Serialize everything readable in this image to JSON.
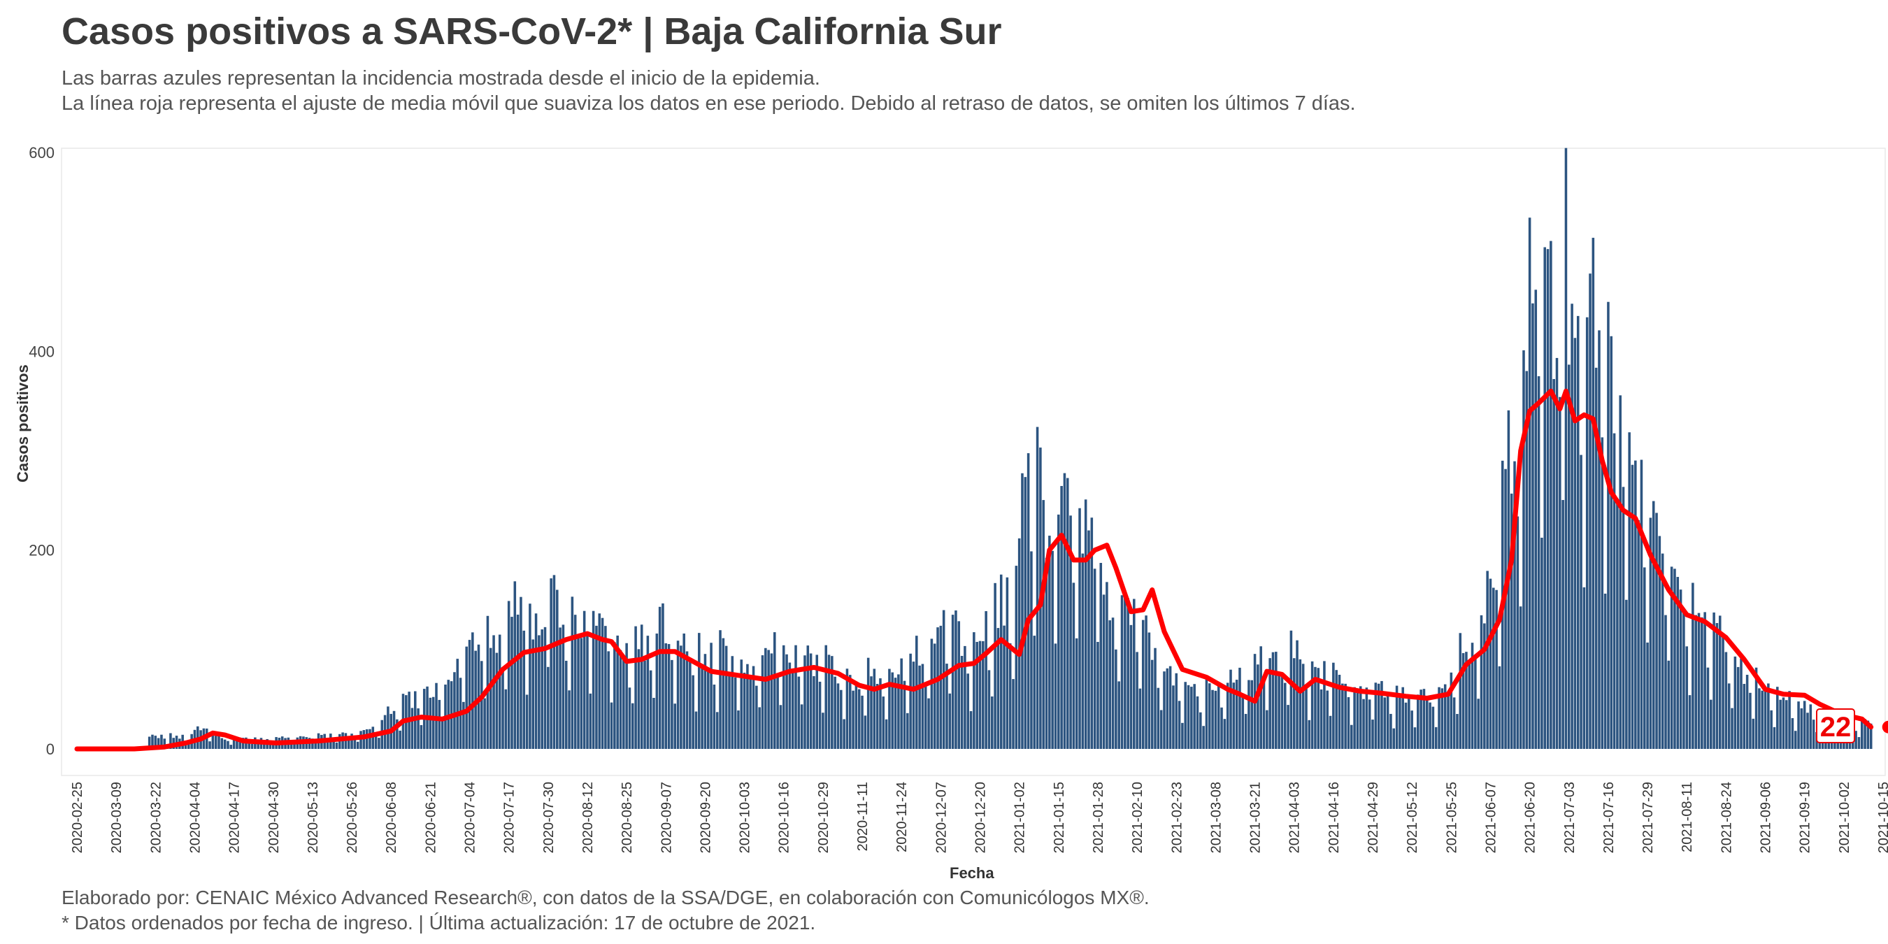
{
  "title": "Casos positivos a SARS-CoV-2* | Baja California Sur",
  "subtitle_line1": "Las barras azules representan la incidencia mostrada desde el inicio de la epidemia.",
  "subtitle_line2": "La línea roja representa el ajuste de media móvil que suaviza los datos en ese periodo. Debido al retraso de datos, se omiten los últimos 7 días.",
  "caption_line1": "Elaborado por: CENAIC México Advanced Research®, con datos de la SSA/DGE, en colaboración con Comunicólogos MX®.",
  "caption_line2": "* Datos ordenados por fecha de ingreso. | Última actualización: 17 de octubre de 2021.",
  "colors": {
    "bars": "#2c5480",
    "line": "#ff0000",
    "last_label": "#ee0000"
  },
  "chart_data": {
    "type": "bar",
    "title": "Casos positivos a SARS-CoV-2* | Baja California Sur",
    "xlabel": "Fecha",
    "ylabel": "Casos positivos",
    "ylim": [
      -30,
      600
    ],
    "x_range": [
      "2020-02-25",
      "2021-10-15"
    ],
    "y_ticks": [
      0,
      200,
      400,
      600
    ],
    "x_ticks": [
      "2020-02-25",
      "2020-03-09",
      "2020-03-22",
      "2020-04-04",
      "2020-04-17",
      "2020-04-30",
      "2020-05-13",
      "2020-05-26",
      "2020-06-08",
      "2020-06-21",
      "2020-07-04",
      "2020-07-17",
      "2020-07-30",
      "2020-08-12",
      "2020-08-25",
      "2020-09-07",
      "2020-09-20",
      "2020-10-03",
      "2020-10-16",
      "2020-10-29",
      "2020-11-11",
      "2020-11-24",
      "2020-12-07",
      "2020-12-20",
      "2021-01-02",
      "2021-01-15",
      "2021-01-28",
      "2021-02-10",
      "2021-02-23",
      "2021-03-08",
      "2021-03-21",
      "2021-04-03",
      "2021-04-16",
      "2021-04-29",
      "2021-05-12",
      "2021-05-25",
      "2021-06-07",
      "2021-06-20",
      "2021-07-03",
      "2021-07-16",
      "2021-07-29",
      "2021-08-11",
      "2021-08-24",
      "2021-09-06",
      "2021-09-19",
      "2021-10-02",
      "2021-10-15"
    ],
    "grid": false,
    "legend": "none",
    "bars_series": {
      "name": "Casos diarios",
      "dates": [
        "2020-04-02",
        "2020-04-04",
        "2020-04-06",
        "2020-04-08",
        "2020-04-10",
        "2020-04-14",
        "2020-04-20",
        "2020-04-28",
        "2020-05-10",
        "2020-05-24",
        "2020-06-03",
        "2020-06-08",
        "2020-06-14",
        "2020-06-18",
        "2020-06-22",
        "2020-06-26",
        "2020-07-01",
        "2020-07-04",
        "2020-07-08",
        "2020-07-12",
        "2020-07-16",
        "2020-07-20",
        "2020-07-24",
        "2020-07-27",
        "2020-07-30",
        "2020-08-03",
        "2020-08-08",
        "2020-08-12",
        "2020-08-16",
        "2020-08-20",
        "2020-08-25",
        "2020-08-30",
        "2020-09-05",
        "2020-09-10",
        "2020-09-15",
        "2020-09-20",
        "2020-09-26",
        "2020-10-03",
        "2020-10-08",
        "2020-10-13",
        "2020-10-18",
        "2020-10-24",
        "2020-10-29",
        "2020-11-04",
        "2020-11-09",
        "2020-11-15",
        "2020-11-20",
        "2020-11-25",
        "2020-12-01",
        "2020-12-06",
        "2020-12-10",
        "2020-12-14",
        "2020-12-18",
        "2020-12-22",
        "2020-12-27",
        "2021-01-01",
        "2021-01-04",
        "2021-01-07",
        "2021-01-11",
        "2021-01-15",
        "2021-01-19",
        "2021-01-23",
        "2021-01-27",
        "2021-01-31",
        "2021-02-04",
        "2021-02-08",
        "2021-02-12",
        "2021-02-17",
        "2021-02-22",
        "2021-02-27",
        "2021-03-04",
        "2021-03-09",
        "2021-03-14",
        "2021-03-19",
        "2021-03-24",
        "2021-03-29",
        "2021-04-03",
        "2021-04-08",
        "2021-04-13",
        "2021-04-18",
        "2021-04-23",
        "2021-04-28",
        "2021-05-03",
        "2021-05-08",
        "2021-05-13",
        "2021-05-18",
        "2021-05-23",
        "2021-05-28",
        "2021-06-02",
        "2021-06-06",
        "2021-06-10",
        "2021-06-13",
        "2021-06-16",
        "2021-06-19",
        "2021-06-21",
        "2021-06-23",
        "2021-06-25",
        "2021-06-27",
        "2021-06-29",
        "2021-07-01",
        "2021-07-03",
        "2021-07-05",
        "2021-07-07",
        "2021-07-09",
        "2021-07-11",
        "2021-07-13",
        "2021-07-16",
        "2021-07-19",
        "2021-07-22",
        "2021-07-25",
        "2021-07-28",
        "2021-07-31",
        "2021-08-03",
        "2021-08-06",
        "2021-08-09",
        "2021-08-12",
        "2021-08-16",
        "2021-08-20",
        "2021-08-24",
        "2021-08-28",
        "2021-09-01",
        "2021-09-05",
        "2021-09-09",
        "2021-09-13",
        "2021-09-17",
        "2021-09-21",
        "2021-09-25",
        "2021-09-29",
        "2021-10-03",
        "2021-10-07",
        "2021-10-11"
      ],
      "values": [
        12,
        16,
        22,
        24,
        14,
        9,
        11,
        9,
        12,
        14,
        20,
        40,
        46,
        52,
        55,
        60,
        88,
        105,
        120,
        95,
        125,
        150,
        128,
        110,
        165,
        145,
        112,
        135,
        130,
        110,
        92,
        105,
        120,
        112,
        96,
        88,
        98,
        75,
        90,
        100,
        85,
        90,
        88,
        70,
        60,
        78,
        70,
        85,
        95,
        110,
        125,
        112,
        95,
        120,
        140,
        165,
        260,
        270,
        235,
        240,
        255,
        210,
        235,
        145,
        150,
        140,
        120,
        85,
        70,
        65,
        55,
        60,
        70,
        70,
        90,
        75,
        95,
        70,
        75,
        65,
        60,
        60,
        55,
        50,
        52,
        48,
        60,
        90,
        110,
        150,
        210,
        290,
        320,
        405,
        440,
        470,
        485,
        420,
        395,
        540,
        380,
        460,
        430,
        410,
        410,
        420,
        370,
        300,
        320,
        270,
        250,
        220,
        200,
        175,
        150,
        140,
        130,
        120,
        100,
        80,
        72,
        60,
        55,
        52,
        45,
        40,
        35,
        30,
        28,
        26,
        24
      ]
    },
    "line_series": {
      "name": "Media móvil",
      "dates": [
        "2020-02-25",
        "2020-03-15",
        "2020-03-25",
        "2020-04-01",
        "2020-04-06",
        "2020-04-10",
        "2020-04-14",
        "2020-04-20",
        "2020-05-01",
        "2020-05-15",
        "2020-05-30",
        "2020-06-08",
        "2020-06-12",
        "2020-06-18",
        "2020-06-25",
        "2020-07-03",
        "2020-07-08",
        "2020-07-15",
        "2020-07-22",
        "2020-07-29",
        "2020-08-05",
        "2020-08-12",
        "2020-08-17",
        "2020-08-20",
        "2020-08-25",
        "2020-08-30",
        "2020-09-05",
        "2020-09-10",
        "2020-09-16",
        "2020-09-22",
        "2020-10-01",
        "2020-10-10",
        "2020-10-18",
        "2020-10-26",
        "2020-11-03",
        "2020-11-10",
        "2020-11-15",
        "2020-11-20",
        "2020-11-28",
        "2020-12-06",
        "2020-12-13",
        "2020-12-18",
        "2020-12-22",
        "2020-12-27",
        "2021-01-02",
        "2021-01-05",
        "2021-01-09",
        "2021-01-12",
        "2021-01-16",
        "2021-01-20",
        "2021-01-24",
        "2021-01-27",
        "2021-01-31",
        "2021-02-03",
        "2021-02-08",
        "2021-02-12",
        "2021-02-15",
        "2021-02-19",
        "2021-02-25",
        "2021-03-05",
        "2021-03-12",
        "2021-03-16",
        "2021-03-21",
        "2021-03-25",
        "2021-03-30",
        "2021-04-05",
        "2021-04-10",
        "2021-04-18",
        "2021-04-25",
        "2021-05-02",
        "2021-05-10",
        "2021-05-17",
        "2021-05-24",
        "2021-05-30",
        "2021-06-05",
        "2021-06-10",
        "2021-06-14",
        "2021-06-17",
        "2021-06-20",
        "2021-06-23",
        "2021-06-27",
        "2021-06-30",
        "2021-07-02",
        "2021-07-05",
        "2021-07-08",
        "2021-07-11",
        "2021-07-14",
        "2021-07-17",
        "2021-07-21",
        "2021-07-25",
        "2021-07-30",
        "2021-08-05",
        "2021-08-11",
        "2021-08-17",
        "2021-08-24",
        "2021-08-30",
        "2021-09-06",
        "2021-09-12",
        "2021-09-19",
        "2021-09-24",
        "2021-09-29",
        "2021-10-04",
        "2021-10-08",
        "2021-10-11"
      ],
      "values": [
        0,
        0,
        2,
        6,
        10,
        16,
        14,
        8,
        6,
        8,
        12,
        18,
        28,
        32,
        30,
        38,
        52,
        80,
        97,
        101,
        110,
        116,
        110,
        108,
        88,
        90,
        98,
        98,
        88,
        78,
        74,
        70,
        78,
        82,
        76,
        64,
        60,
        65,
        60,
        70,
        84,
        86,
        96,
        110,
        95,
        130,
        145,
        200,
        215,
        190,
        190,
        200,
        205,
        182,
        138,
        140,
        160,
        118,
        80,
        72,
        60,
        55,
        48,
        78,
        75,
        58,
        70,
        62,
        58,
        56,
        53,
        51,
        55,
        85,
        100,
        130,
        190,
        300,
        340,
        348,
        360,
        342,
        360,
        330,
        336,
        332,
        290,
        258,
        240,
        232,
        195,
        160,
        135,
        128,
        112,
        90,
        60,
        55,
        54,
        45,
        38,
        33,
        30,
        22
      ]
    },
    "last_value_label": "22"
  }
}
